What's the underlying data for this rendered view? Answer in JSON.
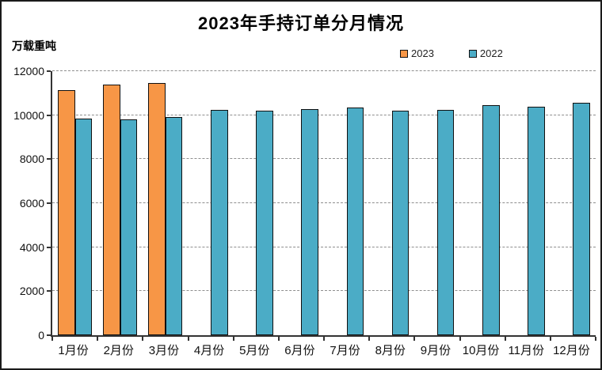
{
  "title": "2023年手持订单分月情况",
  "y_unit_label": "万载重吨",
  "legend": {
    "items": [
      {
        "label": "2023",
        "color": "#F79646"
      },
      {
        "label": "2022",
        "color": "#4BACC6"
      }
    ]
  },
  "chart_data": {
    "type": "bar",
    "title": "2023年手持订单分月情况",
    "ylabel": "万载重吨",
    "xlabel": "",
    "categories": [
      "1月份",
      "2月份",
      "3月份",
      "4月份",
      "5月份",
      "6月份",
      "7月份",
      "8月份",
      "9月份",
      "10月份",
      "11月份",
      "12月份"
    ],
    "series": [
      {
        "name": "2023",
        "color": "#F79646",
        "values": [
          11142,
          11403,
          11452,
          null,
          null,
          null,
          null,
          null,
          null,
          null,
          null,
          null
        ]
      },
      {
        "name": "2022",
        "color": "#4BACC6",
        "values": [
          9843,
          9796,
          9904,
          10247,
          10210,
          10285,
          10360,
          10190,
          10250,
          10459,
          10370,
          10557
        ]
      }
    ],
    "ylim": [
      0,
      12000
    ],
    "ytick_step": 2000,
    "yticks": [
      0,
      2000,
      4000,
      6000,
      8000,
      10000,
      12000
    ],
    "grid": "horizontal-dashed",
    "legend_position": "top-right",
    "bar_border_color": "#101010"
  }
}
